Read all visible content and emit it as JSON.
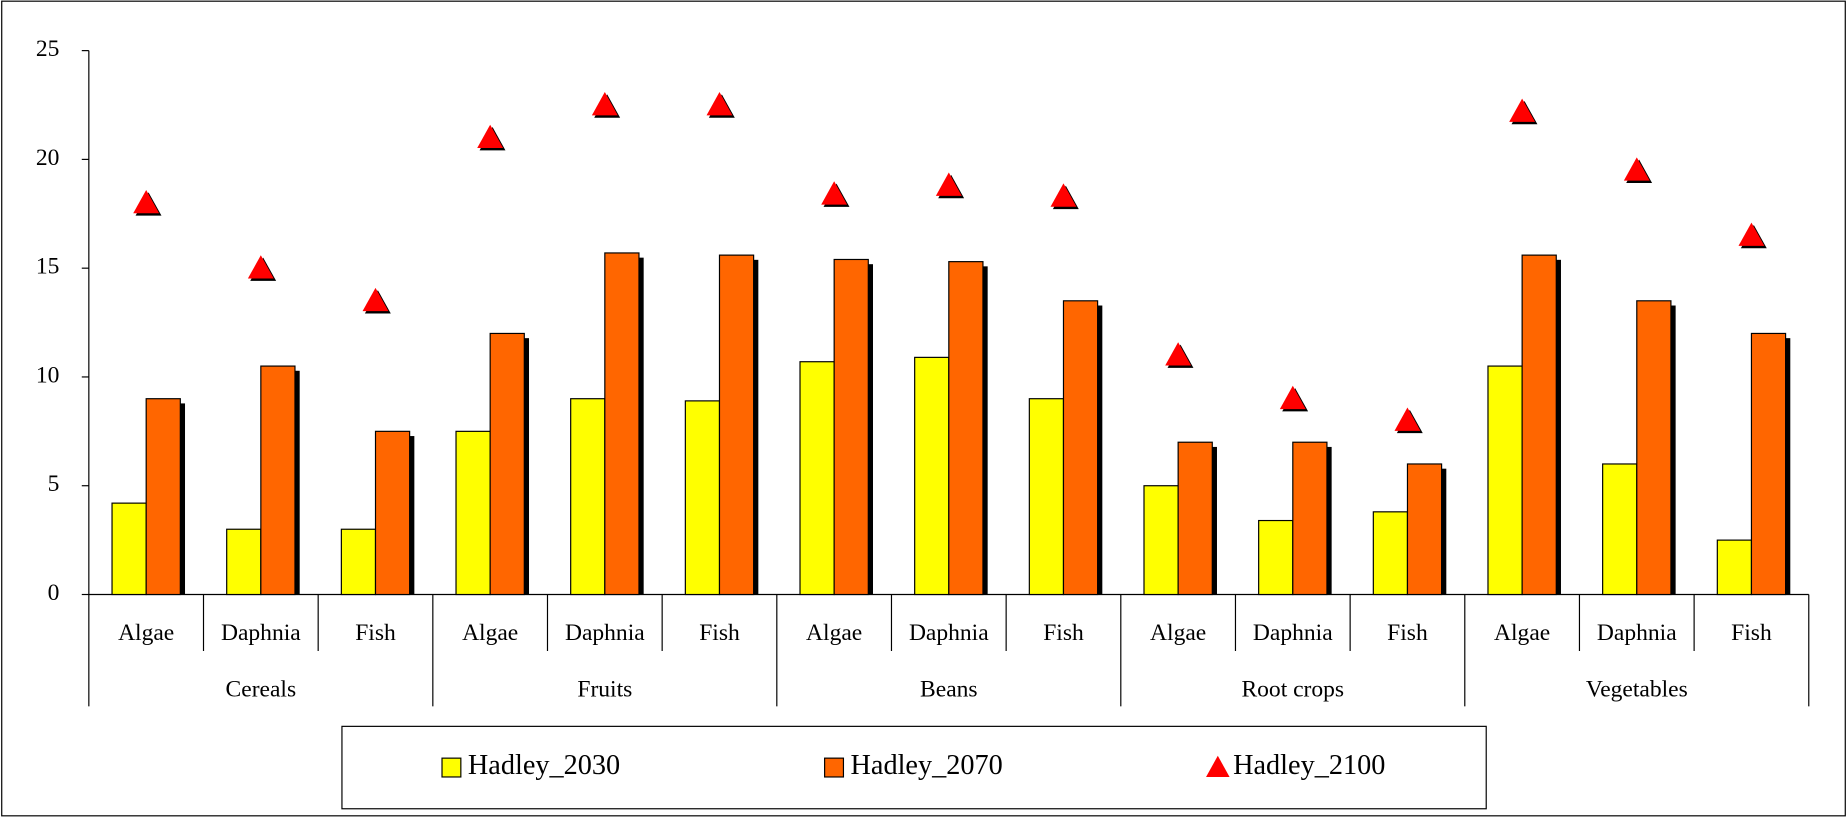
{
  "chart_data": {
    "type": "bar",
    "category_groups": [
      "Cereals",
      "Fruits",
      "Beans",
      "Root crops",
      "Vegetables"
    ],
    "categories": [
      "Algae",
      "Daphnia",
      "Fish",
      "Algae",
      "Daphnia",
      "Fish",
      "Algae",
      "Daphnia",
      "Fish",
      "Algae",
      "Daphnia",
      "Fish",
      "Algae",
      "Daphnia",
      "Fish"
    ],
    "series": [
      {
        "name": "Hadley_2030",
        "color": "#ffff00",
        "kind": "bar",
        "values": [
          4.2,
          3.0,
          3.0,
          7.5,
          9.0,
          8.9,
          10.7,
          10.9,
          9.0,
          5.0,
          3.4,
          3.8,
          10.5,
          6.0,
          2.5
        ]
      },
      {
        "name": "Hadley_2070",
        "color": "#ff6600",
        "kind": "bar",
        "values": [
          9.0,
          10.5,
          7.5,
          12.0,
          15.7,
          15.6,
          15.4,
          15.3,
          13.5,
          7.0,
          7.0,
          6.0,
          15.6,
          13.5,
          12.0
        ]
      },
      {
        "name": "Hadley_2100",
        "color": "#ff0000",
        "kind": "marker",
        "values": [
          18.0,
          15.0,
          13.5,
          21.0,
          22.5,
          22.5,
          18.4,
          18.8,
          18.3,
          11.0,
          9.0,
          8.0,
          22.2,
          19.5,
          16.5
        ]
      }
    ],
    "ylim": [
      0,
      25
    ],
    "yticks": [
      0,
      5,
      10,
      15,
      20,
      25
    ],
    "legend": "bottom"
  }
}
